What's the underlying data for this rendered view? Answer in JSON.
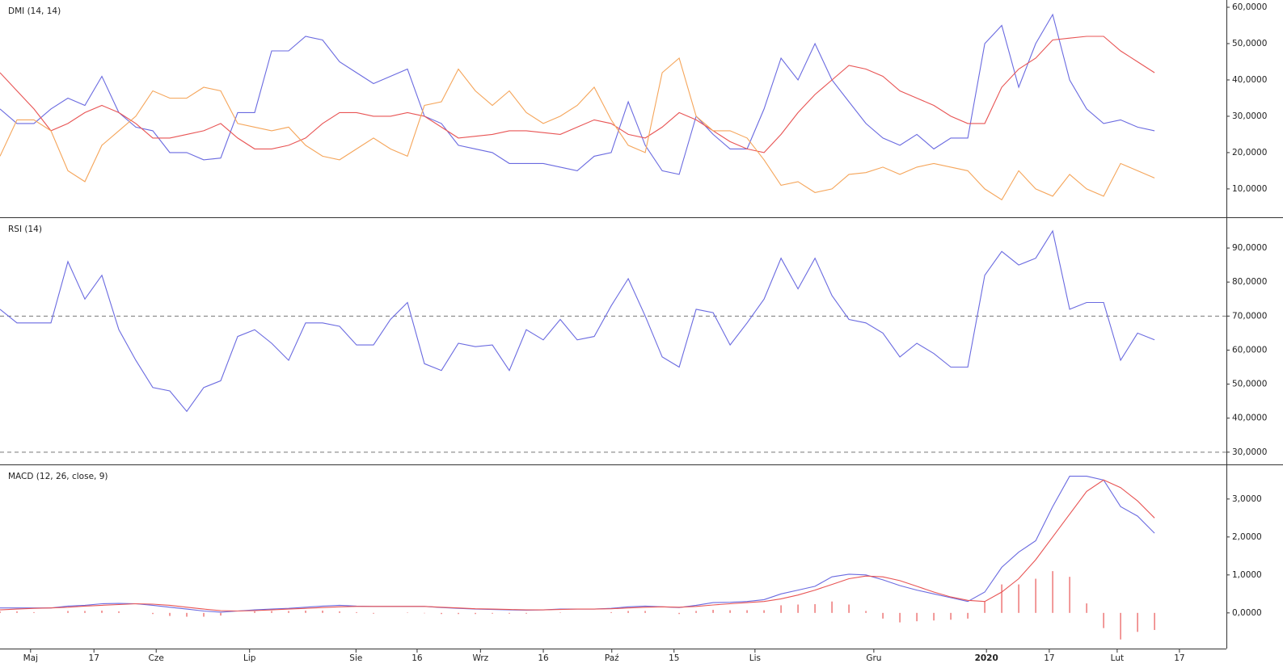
{
  "chart_data": [
    {
      "type": "line",
      "title": "DMI (14, 14)",
      "x": [
        0,
        3,
        6,
        9,
        12,
        15,
        18,
        21,
        24,
        27,
        30,
        33,
        36,
        39,
        42,
        45,
        48,
        51,
        54,
        57,
        60,
        63,
        66,
        69,
        72,
        75,
        78,
        81,
        84,
        87,
        90,
        93,
        96,
        99,
        102,
        105,
        108,
        111,
        114,
        117,
        120,
        123,
        126,
        129,
        132,
        135,
        138,
        141,
        144,
        147,
        150,
        153,
        156,
        159,
        162,
        165,
        168,
        171,
        174,
        177,
        180,
        183,
        186,
        189,
        192,
        195,
        198,
        201,
        204
      ],
      "xlim": [
        0,
        216.7
      ],
      "ylim": [
        2.2,
        62
      ],
      "yticks": [
        {
          "value": 10,
          "label": "10,0000"
        },
        {
          "value": 20,
          "label": "20,0000"
        },
        {
          "value": 30,
          "label": "30,0000"
        },
        {
          "value": 40,
          "label": "40,0000"
        },
        {
          "value": 50,
          "label": "50,0000"
        },
        {
          "value": 60,
          "label": "60,0000"
        }
      ],
      "series": [
        {
          "color": "#6a6ae0",
          "values": [
            32,
            28,
            28,
            32,
            35,
            33,
            41,
            31,
            27,
            26,
            20,
            20,
            18,
            18.5,
            31,
            31,
            48,
            48,
            52,
            51,
            45,
            42,
            39,
            41,
            43,
            30,
            28,
            22,
            21,
            20,
            17,
            17,
            17,
            16,
            15,
            19,
            20,
            34,
            22,
            15,
            14,
            30,
            25,
            21,
            21,
            32,
            46,
            40,
            50,
            40,
            34,
            28,
            24,
            22,
            25,
            21,
            24,
            24,
            50,
            55,
            38,
            50,
            58,
            40,
            32,
            28,
            29,
            27,
            26
          ]
        },
        {
          "color": "#e85454",
          "values": [
            42,
            37,
            32,
            26,
            28,
            31,
            33,
            31,
            28,
            24,
            24,
            25,
            26,
            28,
            24,
            21,
            21,
            22,
            24,
            28,
            31,
            31,
            30,
            30,
            31,
            30,
            27,
            24,
            24.5,
            25,
            26,
            26,
            25.5,
            25,
            27,
            29,
            28,
            25,
            24,
            27,
            31,
            29,
            26,
            23,
            21,
            20,
            25,
            31,
            36,
            40,
            44,
            43,
            41,
            37,
            35,
            33,
            30,
            28,
            28,
            38,
            43,
            46,
            51,
            51.5,
            52,
            52,
            48,
            45,
            42
          ]
        },
        {
          "color": "#f5a55a",
          "values": [
            19,
            29,
            29,
            26,
            15,
            12,
            22,
            26,
            30,
            37,
            35,
            35,
            38,
            37,
            28,
            27,
            26,
            27,
            22,
            19,
            18,
            21,
            24,
            21,
            19,
            33,
            34,
            43,
            37,
            33,
            37,
            31,
            28,
            30,
            33,
            38,
            29,
            22,
            20,
            42,
            46,
            30,
            26,
            26,
            24,
            18,
            11,
            12,
            9,
            10,
            14,
            14.5,
            16,
            14,
            16,
            17,
            16,
            15,
            10,
            7,
            15,
            10,
            8,
            14,
            10,
            8,
            17,
            15,
            13
          ]
        }
      ]
    },
    {
      "type": "line",
      "title": "RSI (14)",
      "x": [
        0,
        3,
        6,
        9,
        12,
        15,
        18,
        21,
        24,
        27,
        30,
        33,
        36,
        39,
        42,
        45,
        48,
        51,
        54,
        57,
        60,
        63,
        66,
        69,
        72,
        75,
        78,
        81,
        84,
        87,
        90,
        93,
        96,
        99,
        102,
        105,
        108,
        111,
        114,
        117,
        120,
        123,
        126,
        129,
        132,
        135,
        138,
        141,
        144,
        147,
        150,
        153,
        156,
        159,
        162,
        165,
        168,
        171,
        174,
        177,
        180,
        183,
        186,
        189,
        192,
        195,
        198,
        201,
        204
      ],
      "xlim": [
        0,
        216.7
      ],
      "ylim": [
        26.4,
        98.8
      ],
      "yticks": [
        {
          "value": 30,
          "label": "30,0000"
        },
        {
          "value": 40,
          "label": "40,0000"
        },
        {
          "value": 50,
          "label": "50,0000"
        },
        {
          "value": 60,
          "label": "60,0000"
        },
        {
          "value": 70,
          "label": "70,0000"
        },
        {
          "value": 80,
          "label": "80,0000"
        },
        {
          "value": 90,
          "label": "90,0000"
        }
      ],
      "hlines": [
        70,
        30
      ],
      "series": [
        {
          "color": "#6a6ae0",
          "values": [
            72,
            68,
            68,
            68,
            86,
            75,
            82,
            66,
            57,
            49,
            48,
            42,
            49,
            51,
            64,
            66,
            62,
            57,
            68,
            68,
            67,
            61.5,
            61.5,
            69,
            74,
            56,
            54,
            62,
            61,
            61.5,
            54,
            66,
            63,
            69,
            63,
            64,
            73,
            81,
            70,
            58,
            55,
            72,
            71,
            61.5,
            68,
            75,
            87,
            78,
            87,
            76,
            69,
            68,
            65,
            58,
            62,
            59,
            55,
            55,
            82,
            89,
            85,
            87,
            95,
            72,
            74,
            74,
            57,
            65,
            63
          ]
        }
      ]
    },
    {
      "type": "line",
      "title": "MACD (12, 26, close, 9)",
      "x": [
        0,
        3,
        6,
        9,
        12,
        15,
        18,
        21,
        24,
        27,
        30,
        33,
        36,
        39,
        42,
        45,
        48,
        51,
        54,
        57,
        60,
        63,
        66,
        69,
        72,
        75,
        78,
        81,
        84,
        87,
        90,
        93,
        96,
        99,
        102,
        105,
        108,
        111,
        114,
        117,
        120,
        123,
        126,
        129,
        132,
        135,
        138,
        141,
        144,
        147,
        150,
        153,
        156,
        159,
        162,
        165,
        168,
        171,
        174,
        177,
        180,
        183,
        186,
        189,
        192,
        195,
        198,
        201,
        204
      ],
      "xlim": [
        0,
        216.7
      ],
      "xticks": [
        {
          "value": 5.4,
          "label": "Maj"
        },
        {
          "value": 16.6,
          "label": "17"
        },
        {
          "value": 27.6,
          "label": "Cze"
        },
        {
          "value": 44.1,
          "label": "Lip"
        },
        {
          "value": 62.9,
          "label": "Sie"
        },
        {
          "value": 73.7,
          "label": "16"
        },
        {
          "value": 84.9,
          "label": "Wrz"
        },
        {
          "value": 96,
          "label": "16"
        },
        {
          "value": 108.1,
          "label": "Paź"
        },
        {
          "value": 119.1,
          "label": "15"
        },
        {
          "value": 133.4,
          "label": "Lis"
        },
        {
          "value": 154.4,
          "label": "Gru"
        },
        {
          "value": 174.3,
          "label": "2020"
        },
        {
          "value": 185.4,
          "label": "17"
        },
        {
          "value": 197.4,
          "label": "Lut"
        },
        {
          "value": 208.4,
          "label": "17"
        }
      ],
      "ylim": [
        -0.94,
        3.89
      ],
      "yticks": [
        {
          "value": 0,
          "label": "0,0000"
        },
        {
          "value": 1,
          "label": "1,0000"
        },
        {
          "value": 2,
          "label": "2,0000"
        },
        {
          "value": 3,
          "label": "3,0000"
        }
      ],
      "series": [
        {
          "type": "bar",
          "color": "#e85454",
          "values": [
            0.04,
            0.04,
            0.02,
            0,
            0.05,
            0.05,
            0.06,
            0.04,
            0,
            -0.03,
            -0.08,
            -0.1,
            -0.1,
            -0.07,
            0,
            0.04,
            0.05,
            0.05,
            0.06,
            0.06,
            0.04,
            0.02,
            -0.02,
            0,
            0.01,
            -0.01,
            -0.03,
            -0.03,
            -0.03,
            -0.02,
            -0.02,
            -0.02,
            0,
            0.01,
            0,
            0,
            0.02,
            0.05,
            0.05,
            0,
            -0.03,
            0.05,
            0.08,
            0.07,
            0.07,
            0.07,
            0.2,
            0.22,
            0.23,
            0.3,
            0.22,
            0.05,
            -0.15,
            -0.25,
            -0.22,
            -0.2,
            -0.18,
            -0.15,
            0.3,
            0.75,
            0.75,
            0.9,
            1.1,
            0.95,
            0.25,
            -0.4,
            -0.7,
            -0.5,
            -0.45
          ]
        },
        {
          "type": "line",
          "color": "#6a6ae0",
          "values": [
            0.13,
            0.13,
            0.13,
            0.13,
            0.18,
            0.2,
            0.24,
            0.25,
            0.24,
            0.2,
            0.15,
            0.1,
            0.05,
            0.02,
            0.05,
            0.08,
            0.1,
            0.12,
            0.15,
            0.18,
            0.2,
            0.18,
            0.17,
            0.17,
            0.17,
            0.17,
            0.14,
            0.12,
            0.1,
            0.09,
            0.08,
            0.07,
            0.08,
            0.1,
            0.1,
            0.1,
            0.12,
            0.16,
            0.18,
            0.16,
            0.14,
            0.2,
            0.27,
            0.28,
            0.3,
            0.35,
            0.5,
            0.6,
            0.7,
            0.95,
            1.02,
            1.0,
            0.87,
            0.72,
            0.6,
            0.5,
            0.4,
            0.3,
            0.55,
            1.2,
            1.6,
            1.9,
            2.8,
            3.6,
            3.6,
            3.5,
            2.8,
            2.55,
            2.1
          ]
        },
        {
          "type": "line",
          "color": "#e85454",
          "values": [
            0.08,
            0.1,
            0.12,
            0.13,
            0.15,
            0.18,
            0.2,
            0.22,
            0.24,
            0.23,
            0.2,
            0.15,
            0.1,
            0.06,
            0.05,
            0.06,
            0.08,
            0.1,
            0.12,
            0.14,
            0.16,
            0.17,
            0.17,
            0.17,
            0.17,
            0.17,
            0.15,
            0.13,
            0.11,
            0.1,
            0.09,
            0.08,
            0.08,
            0.09,
            0.1,
            0.1,
            0.11,
            0.13,
            0.15,
            0.16,
            0.15,
            0.17,
            0.21,
            0.24,
            0.27,
            0.3,
            0.37,
            0.47,
            0.6,
            0.75,
            0.9,
            0.97,
            0.95,
            0.85,
            0.7,
            0.55,
            0.42,
            0.33,
            0.3,
            0.55,
            0.9,
            1.4,
            2.0,
            2.6,
            3.2,
            3.5,
            3.3,
            2.95,
            2.5
          ]
        }
      ]
    }
  ]
}
